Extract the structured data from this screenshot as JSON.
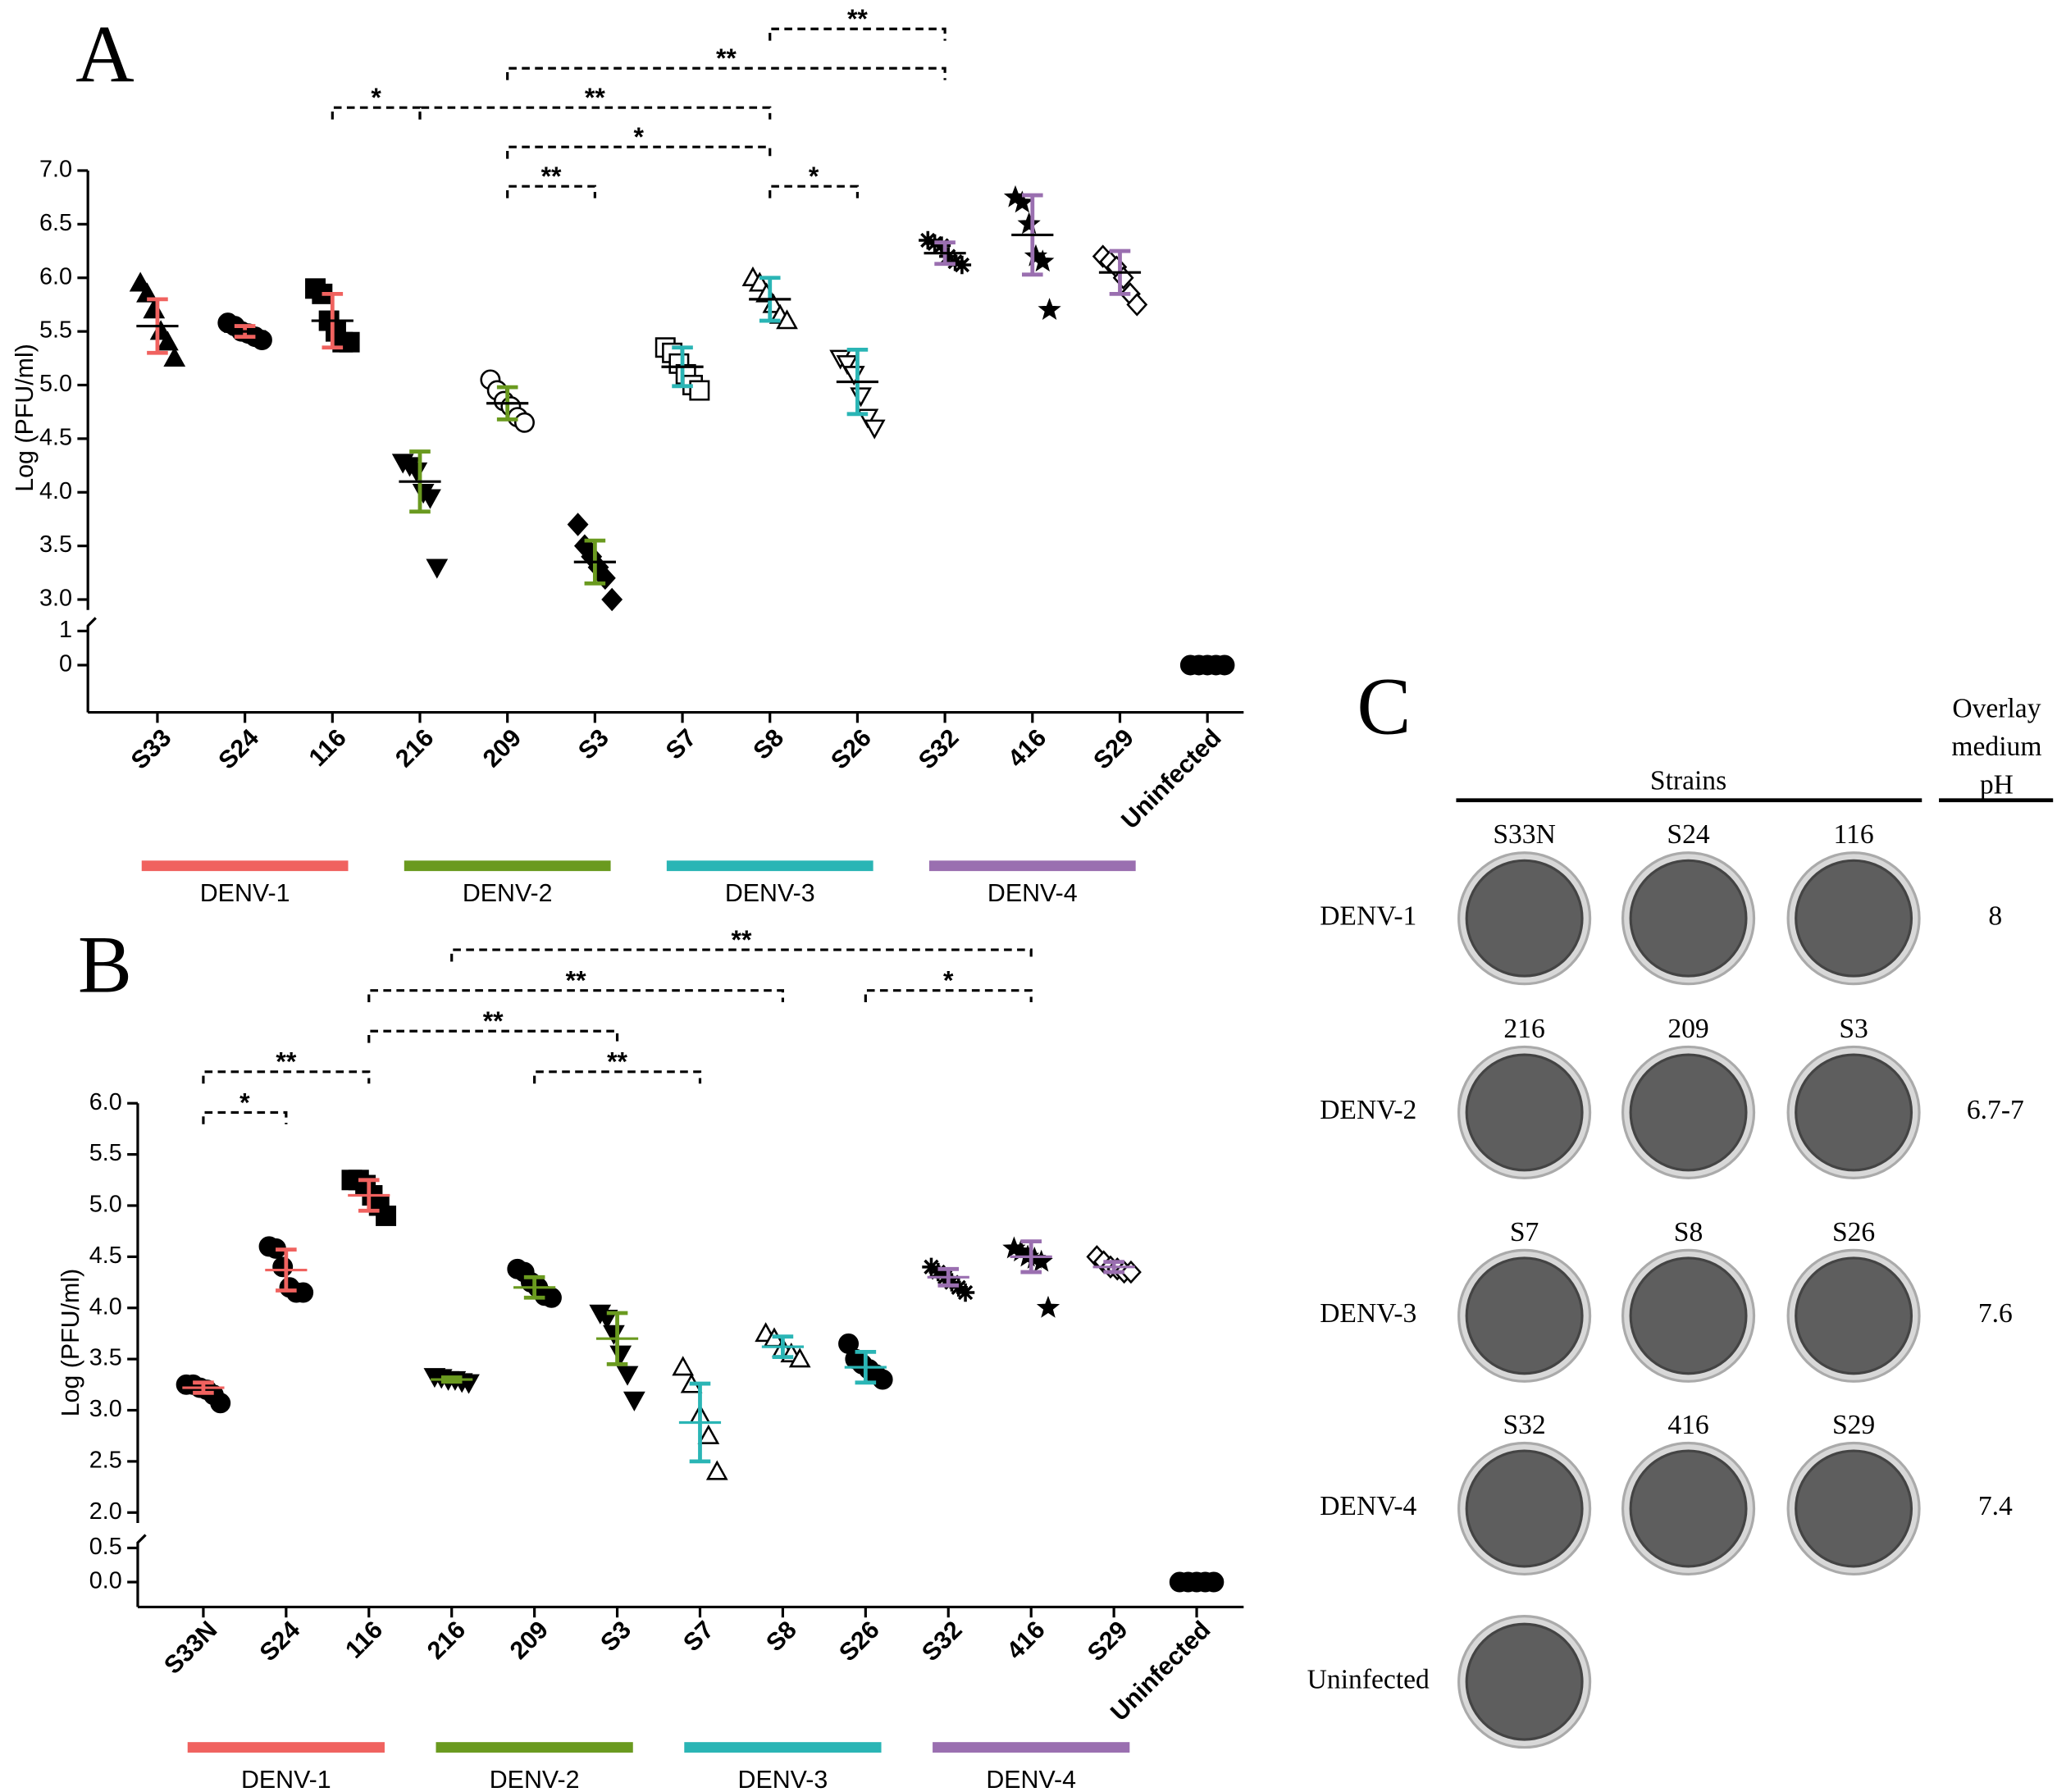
{
  "chart_data": [
    {
      "type": "dot",
      "panel": "A",
      "ylabel": "Log (PFU/ml)",
      "categories": [
        "S33",
        "S24",
        "116",
        "216",
        "209",
        "S3",
        "S7",
        "S8",
        "S26",
        "S32",
        "416",
        "S29",
        "Uninfected"
      ],
      "points": [
        [
          5.95,
          5.85,
          5.7,
          5.5,
          5.4,
          5.25
        ],
        [
          5.58,
          5.55,
          5.5,
          5.48,
          5.45,
          5.42
        ],
        [
          5.9,
          5.85,
          5.6,
          5.5,
          5.4,
          5.4
        ],
        [
          4.28,
          4.25,
          4.2,
          4.0,
          3.95,
          3.3
        ],
        [
          5.05,
          4.95,
          4.85,
          4.8,
          4.7,
          4.65
        ],
        [
          3.7,
          3.5,
          3.4,
          3.3,
          3.2,
          3.0
        ],
        [
          5.35,
          5.3,
          5.2,
          5.1,
          5.0,
          4.95
        ],
        [
          6.0,
          5.95,
          5.85,
          5.75,
          5.65,
          5.6
        ],
        [
          5.25,
          5.2,
          5.1,
          4.9,
          4.7,
          4.6
        ],
        [
          6.35,
          6.32,
          6.3,
          6.2,
          6.15,
          6.12
        ],
        [
          6.75,
          6.7,
          6.5,
          6.2,
          6.15,
          5.7
        ],
        [
          6.2,
          6.15,
          6.1,
          6.0,
          5.85,
          5.75
        ],
        [
          0,
          0,
          0,
          0,
          0
        ]
      ],
      "means": [
        5.55,
        5.5,
        5.6,
        4.1,
        4.83,
        3.35,
        5.17,
        5.8,
        5.03,
        6.23,
        6.4,
        6.05,
        0
      ],
      "errors": [
        0.25,
        0.05,
        0.25,
        0.28,
        0.15,
        0.2,
        0.18,
        0.2,
        0.3,
        0.1,
        0.37,
        0.2,
        0
      ],
      "markers": [
        "triangle-up",
        "circle",
        "square",
        "triangle-down",
        "circle",
        "diamond",
        "square",
        "triangle-up",
        "triangle-down",
        "asterisk",
        "star",
        "diamond",
        "circle"
      ],
      "filled": [
        true,
        true,
        true,
        true,
        false,
        true,
        false,
        false,
        false,
        true,
        true,
        false,
        true
      ],
      "point_color": "#000000",
      "mean_color": "#000000",
      "ungrouped_color": "#000000",
      "groups": [
        {
          "name": "DENV-1",
          "color": "#f0625f",
          "members": [
            "S33",
            "S24",
            "116"
          ]
        },
        {
          "name": "DENV-2",
          "color": "#6a9a1f",
          "members": [
            "216",
            "209",
            "S3"
          ]
        },
        {
          "name": "DENV-3",
          "color": "#2ab5b5",
          "members": [
            "S7",
            "S8",
            "S26"
          ]
        },
        {
          "name": "DENV-4",
          "color": "#9a6fb0",
          "members": [
            "S32",
            "416",
            "S29"
          ]
        }
      ],
      "ylim": [
        3,
        7
      ],
      "yticks": [
        {
          "value": 3,
          "label": "3.0"
        },
        3.5,
        {
          "value": 4,
          "label": "4.0"
        },
        4.5,
        {
          "value": 5,
          "label": "5.0"
        },
        5.5,
        {
          "value": 6,
          "label": "6.0"
        },
        6.5,
        {
          "value": 7,
          "label": "7.0"
        }
      ],
      "ylim_low": [
        0,
        1
      ],
      "yticks_low": [
        0,
        1
      ],
      "comparisons": [
        {
          "from": "209",
          "to": "S3",
          "label": "**"
        },
        {
          "from": "S8",
          "to": "S26",
          "label": "*"
        },
        {
          "from": "209",
          "to": "S8",
          "label": "*"
        },
        {
          "from": "216",
          "to": "S8",
          "label": "**"
        },
        {
          "from": "116",
          "to": "216",
          "label": "*"
        },
        {
          "from": "209",
          "to": "S32",
          "label": "**"
        },
        {
          "from": "S8",
          "to": "S32",
          "label": "**"
        }
      ]
    },
    {
      "type": "dot",
      "panel": "B",
      "ylabel": "Log (PFU/ml)",
      "categories": [
        "S33N",
        "S24",
        "116",
        "216",
        "209",
        "S3",
        "S7",
        "S8",
        "S26",
        "S32",
        "416",
        "S29",
        "Uninfected"
      ],
      "points": [
        [
          3.25,
          3.25,
          3.22,
          3.2,
          3.15,
          3.07
        ],
        [
          4.6,
          4.58,
          4.4,
          4.2,
          4.15,
          4.15
        ],
        [
          5.25,
          5.25,
          5.2,
          5.1,
          5.0,
          4.9
        ],
        [
          3.33,
          3.32,
          3.3,
          3.3,
          3.28,
          3.27
        ],
        [
          4.38,
          4.35,
          4.25,
          4.2,
          4.12,
          4.1
        ],
        [
          3.95,
          3.9,
          3.75,
          3.55,
          3.35,
          3.1
        ],
        [
          3.42,
          3.25,
          2.95,
          2.75,
          2.4
        ],
        [
          3.75,
          3.7,
          3.6,
          3.55,
          3.5
        ],
        [
          3.65,
          3.5,
          3.45,
          3.4,
          3.35,
          3.3
        ],
        [
          4.4,
          4.35,
          4.3,
          4.25,
          4.2,
          4.15
        ],
        [
          4.58,
          4.55,
          4.5,
          4.48,
          4.45,
          4.0
        ],
        [
          4.5,
          4.45,
          4.4,
          4.38,
          4.35,
          4.35
        ],
        [
          0,
          0,
          0,
          0,
          0
        ]
      ],
      "means": [
        3.22,
        4.37,
        5.1,
        3.3,
        4.2,
        3.7,
        2.88,
        3.62,
        3.42,
        4.3,
        4.5,
        4.4,
        0
      ],
      "errors": [
        0.05,
        0.2,
        0.15,
        0.02,
        0.1,
        0.25,
        0.38,
        0.1,
        0.15,
        0.08,
        0.15,
        0.05,
        0
      ],
      "markers": [
        "circle",
        "circle",
        "square",
        "triangle-down",
        "circle",
        "triangle-down",
        "triangle-up",
        "triangle-up",
        "circle",
        "asterisk",
        "star",
        "diamond",
        "circle"
      ],
      "filled": [
        true,
        true,
        true,
        true,
        true,
        true,
        false,
        false,
        true,
        true,
        true,
        false,
        true
      ],
      "point_color": "#000000",
      "ungrouped_color": "#000000",
      "groups": [
        {
          "name": "DENV-1",
          "color": "#f0625f",
          "members": [
            "S33N",
            "S24",
            "116"
          ]
        },
        {
          "name": "DENV-2",
          "color": "#6a9a1f",
          "members": [
            "216",
            "209",
            "S3"
          ]
        },
        {
          "name": "DENV-3",
          "color": "#2ab5b5",
          "members": [
            "S7",
            "S8",
            "S26"
          ]
        },
        {
          "name": "DENV-4",
          "color": "#9a6fb0",
          "members": [
            "S32",
            "416",
            "S29"
          ]
        }
      ],
      "ylim": [
        2,
        6
      ],
      "yticks": [
        {
          "value": 2,
          "label": "2.0"
        },
        2.5,
        {
          "value": 3,
          "label": "3.0"
        },
        3.5,
        {
          "value": 4,
          "label": "4.0"
        },
        4.5,
        {
          "value": 5,
          "label": "5.0"
        },
        5.5,
        {
          "value": 6,
          "label": "6.0"
        }
      ],
      "ylim_low": [
        0,
        0.5
      ],
      "yticks_low": [
        {
          "value": 0,
          "label": "0.0"
        },
        0.5
      ],
      "comparisons": [
        {
          "from": "S33N",
          "to": "S24",
          "label": "*"
        },
        {
          "from": "S33N",
          "to": "116",
          "label": "**"
        },
        {
          "from": "209",
          "to": "S7",
          "label": "**"
        },
        {
          "from": "116",
          "to": "S3",
          "label": "**"
        },
        {
          "from": "116",
          "to": "S8",
          "label": "**"
        },
        {
          "from": "S26",
          "to": "416",
          "label": "*"
        },
        {
          "from": "216",
          "to": "416",
          "label": "**"
        }
      ]
    }
  ],
  "panel_c": {
    "panel": "C",
    "header": "Strains",
    "ph_header": [
      "Overlay",
      "medium",
      "pH"
    ],
    "rows": [
      {
        "label": "DENV-1",
        "strains": [
          "S33N",
          "S24",
          "116"
        ],
        "ph": "8"
      },
      {
        "label": "DENV-2",
        "strains": [
          "216",
          "209",
          "S3"
        ],
        "ph": "6.7-7"
      },
      {
        "label": "DENV-3",
        "strains": [
          "S7",
          "S8",
          "S26"
        ],
        "ph": "7.6"
      },
      {
        "label": "DENV-4",
        "strains": [
          "S32",
          "416",
          "S29"
        ],
        "ph": "7.4"
      },
      {
        "label": "Uninfected"
      }
    ]
  }
}
